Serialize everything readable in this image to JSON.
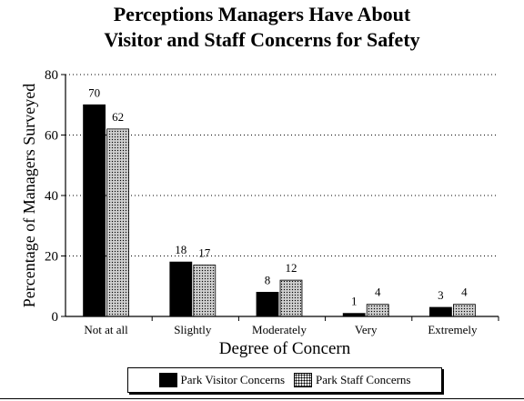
{
  "chart_data": {
    "type": "bar",
    "title_lines": [
      "Perceptions Managers Have About",
      "Visitor and Staff Concerns for Safety"
    ],
    "xlabel": "Degree of Concern",
    "ylabel": "Percentage of Managers Surveyed",
    "categories": [
      "Not at all",
      "Slightly",
      "Moderately",
      "Very",
      "Extremely"
    ],
    "series": [
      {
        "name": "Park Visitor Concerns",
        "values": [
          70,
          18,
          8,
          1,
          3
        ],
        "labels": [
          "70",
          "18",
          "8",
          "1",
          "3"
        ],
        "color": "#000000"
      },
      {
        "name": "Park Staff Concerns",
        "values": [
          62,
          17,
          12,
          4,
          4
        ],
        "labels": [
          "62",
          "17",
          "12",
          "4",
          "4"
        ],
        "color": "#bdbdbd"
      }
    ],
    "ylim": [
      0,
      80
    ],
    "yticks": [
      "0",
      "20",
      "40",
      "60",
      "80"
    ],
    "grid": "horizontal-dotted",
    "legend": "bottom"
  }
}
